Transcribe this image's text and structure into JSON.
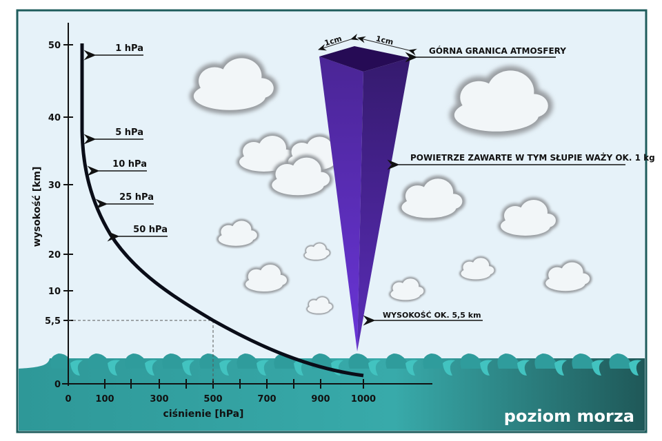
{
  "chart_data": {
    "type": "line",
    "xlabel": "ciśnienie [hPa]",
    "ylabel": "wysokość [km]",
    "x_ticks": [
      "0",
      "100",
      "300",
      "500",
      "700",
      "900",
      "1000"
    ],
    "y_ticks": [
      "0",
      "5,5",
      "10",
      "20",
      "30",
      "40",
      "50"
    ],
    "grid": false,
    "marked_point": {
      "x": 500,
      "y": 5.5
    },
    "pressure_labels": [
      "1 hPa",
      "5 hPa",
      "10 hPa",
      "25 hPa",
      "50 hPa"
    ]
  },
  "column": {
    "width_label": "1cm",
    "depth_label": "1cm",
    "top_label": "GÓRNA GRANICA ATMOSFERY",
    "weight_label": "POWIETRZE ZAWARTE W TYM SŁUPIE WAŻY OK. 1 kg",
    "height_label": "WYSOKOŚĆ OK. 5,5 km"
  },
  "sea_label": "poziom morza",
  "colors": {
    "sky": "#e6f2f9",
    "sea": "#34a3a3",
    "sea_dark": "#1f5a5a",
    "frame": "#1e5c5c",
    "column": "#5a2db8",
    "curve": "#0a0d18"
  }
}
